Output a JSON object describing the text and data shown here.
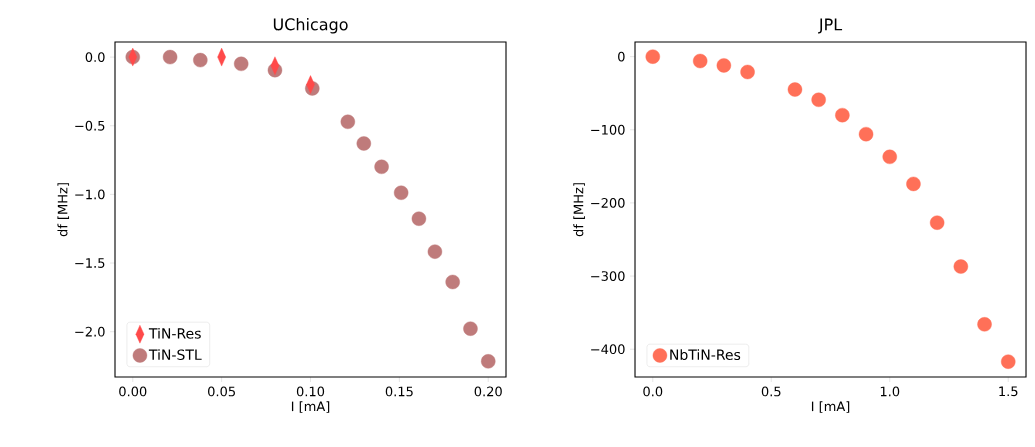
{
  "chart_data": [
    {
      "type": "scatter",
      "title": "UChicago",
      "xlabel": "I [mA]",
      "ylabel": "df [MHz]",
      "xlim": [
        -0.01,
        0.21
      ],
      "ylim": [
        -2.33,
        0.11
      ],
      "xticks": [
        {
          "value": 0,
          "label": "0.00"
        },
        {
          "value": 0.05,
          "label": "0.05"
        },
        {
          "value": 0.1,
          "label": "0.10"
        },
        {
          "value": 0.15,
          "label": "0.15"
        },
        {
          "value": 0.2,
          "label": "0.20"
        }
      ],
      "yticks": [
        {
          "value": -2.0,
          "label": "−2.0"
        },
        {
          "value": -1.5,
          "label": "−1.5"
        },
        {
          "value": -1.0,
          "label": "−1.0"
        },
        {
          "value": -0.5,
          "label": "−0.5"
        },
        {
          "value": 0,
          "label": "0.0"
        }
      ],
      "legend": "bottom left",
      "series": [
        {
          "name": "TiN-Res",
          "color": "#ff4a4a",
          "marker": "diamond",
          "x": [
            0,
            0.05,
            0.08,
            0.1
          ],
          "values": [
            0,
            0,
            -0.063,
            -0.2
          ]
        },
        {
          "name": "TiN-STL",
          "color": "#bf7b7b",
          "marker": "circle",
          "x": [
            0,
            0.021,
            0.038,
            0.061,
            0.08,
            0.101,
            0.121,
            0.13,
            0.14,
            0.151,
            0.161,
            0.17,
            0.18,
            0.19,
            0.2
          ],
          "values": [
            0,
            0,
            -0.022,
            -0.049,
            -0.095,
            -0.228,
            -0.471,
            -0.629,
            -0.799,
            -0.988,
            -1.177,
            -1.417,
            -1.638,
            -1.978,
            -2.216
          ]
        }
      ]
    },
    {
      "type": "scatter",
      "title": "JPL",
      "xlabel": "I [mA]",
      "ylabel": "df [MHz]",
      "xlim": [
        -0.075,
        1.575
      ],
      "ylim": [
        -438,
        20
      ],
      "xticks": [
        {
          "value": 0,
          "label": "0.0"
        },
        {
          "value": 0.5,
          "label": "0.5"
        },
        {
          "value": 1.0,
          "label": "1.0"
        },
        {
          "value": 1.5,
          "label": "1.5"
        }
      ],
      "yticks": [
        {
          "value": -400,
          "label": "−400"
        },
        {
          "value": -300,
          "label": "−300"
        },
        {
          "value": -200,
          "label": "−200"
        },
        {
          "value": -100,
          "label": "−100"
        },
        {
          "value": 0,
          "label": "0"
        }
      ],
      "legend": "bottom left",
      "series": [
        {
          "name": "NbTiN-Res",
          "color": "#ff7058",
          "marker": "circle",
          "x": [
            0,
            0.2,
            0.3,
            0.4,
            0.6,
            0.7,
            0.8,
            0.9,
            1.0,
            1.1,
            1.2,
            1.3,
            1.4,
            1.5
          ],
          "values": [
            0,
            -6,
            -12,
            -21,
            -45,
            -59,
            -80,
            -106,
            -137,
            -174,
            -227,
            -287,
            -366,
            -417
          ]
        }
      ]
    }
  ]
}
